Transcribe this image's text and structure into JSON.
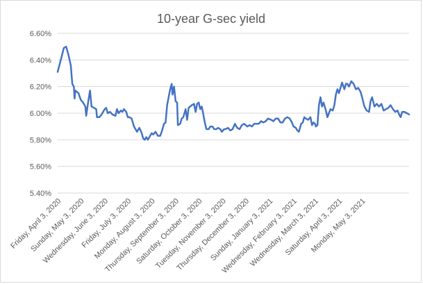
{
  "chart_data": {
    "type": "line",
    "title": "10-year G-sec yield",
    "xlabel": "",
    "ylabel": "",
    "ylim": [
      5.4,
      6.6
    ],
    "y_ticks": [
      "5.40%",
      "5.60%",
      "5.80%",
      "6.00%",
      "6.20%",
      "6.40%",
      "6.60%"
    ],
    "y_tick_values": [
      5.4,
      5.6,
      5.8,
      6.0,
      6.2,
      6.4,
      6.6
    ],
    "x_tick_labels": [
      "Friday, April 3, 2020",
      "Sunday, May 3, 2020",
      "Wednesday, June 3, 2020",
      "Friday, July 3, 2020",
      "Monday, August 3, 2020",
      "Thursday, September 3, 2020",
      "Saturday, October 3, 2020",
      "Tuesday, November 3, 2020",
      "Thursday, December 3, 2020",
      "Sunday, January 3, 2021",
      "Wednesday, February 3, 2021",
      "Wednesday, March 3, 2021",
      "Saturday, April 3, 2021",
      "Monday, May 3, 2021"
    ],
    "x_tick_dates": [
      "2020-04-03",
      "2020-05-03",
      "2020-06-03",
      "2020-07-03",
      "2020-08-03",
      "2020-09-03",
      "2020-10-03",
      "2020-11-03",
      "2020-12-03",
      "2021-01-03",
      "2021-02-03",
      "2021-03-03",
      "2021-04-03",
      "2021-05-03"
    ],
    "grid": true,
    "legend": "none",
    "series": [
      {
        "color": "#4472c4",
        "points": [
          [
            "2020-04-01",
            6.31
          ],
          [
            "2020-04-06",
            6.42
          ],
          [
            "2020-04-09",
            6.49
          ],
          [
            "2020-04-12",
            6.5
          ],
          [
            "2020-04-15",
            6.44
          ],
          [
            "2020-04-18",
            6.36
          ],
          [
            "2020-04-20",
            6.22
          ],
          [
            "2020-04-22",
            6.2
          ],
          [
            "2020-04-23",
            6.11
          ],
          [
            "2020-04-24",
            6.17
          ],
          [
            "2020-04-28",
            6.15
          ],
          [
            "2020-05-01",
            6.1
          ],
          [
            "2020-05-04",
            6.08
          ],
          [
            "2020-05-07",
            6.05
          ],
          [
            "2020-05-08",
            5.98
          ],
          [
            "2020-05-11",
            6.1
          ],
          [
            "2020-05-13",
            6.17
          ],
          [
            "2020-05-15",
            6.05
          ],
          [
            "2020-05-18",
            6.04
          ],
          [
            "2020-05-21",
            6.03
          ],
          [
            "2020-05-22",
            5.97
          ],
          [
            "2020-05-25",
            5.97
          ],
          [
            "2020-05-28",
            5.99
          ],
          [
            "2020-06-01",
            6.03
          ],
          [
            "2020-06-03",
            6.04
          ],
          [
            "2020-06-05",
            6.0
          ],
          [
            "2020-06-08",
            6.01
          ],
          [
            "2020-06-11",
            5.99
          ],
          [
            "2020-06-15",
            5.98
          ],
          [
            "2020-06-17",
            6.03
          ],
          [
            "2020-06-19",
            6.0
          ],
          [
            "2020-06-22",
            6.02
          ],
          [
            "2020-06-24",
            6.01
          ],
          [
            "2020-06-26",
            6.03
          ],
          [
            "2020-06-29",
            6.01
          ],
          [
            "2020-07-01",
            5.97
          ],
          [
            "2020-07-03",
            5.97
          ],
          [
            "2020-07-06",
            5.96
          ],
          [
            "2020-07-09",
            5.9
          ],
          [
            "2020-07-13",
            5.86
          ],
          [
            "2020-07-16",
            5.89
          ],
          [
            "2020-07-19",
            5.85
          ],
          [
            "2020-07-21",
            5.81
          ],
          [
            "2020-07-23",
            5.8
          ],
          [
            "2020-07-25",
            5.82
          ],
          [
            "2020-07-27",
            5.8
          ],
          [
            "2020-07-29",
            5.82
          ],
          [
            "2020-08-01",
            5.85
          ],
          [
            "2020-08-03",
            5.84
          ],
          [
            "2020-08-06",
            5.86
          ],
          [
            "2020-08-09",
            5.83
          ],
          [
            "2020-08-12",
            5.83
          ],
          [
            "2020-08-14",
            5.86
          ],
          [
            "2020-08-17",
            5.92
          ],
          [
            "2020-08-19",
            5.93
          ],
          [
            "2020-08-21",
            6.06
          ],
          [
            "2020-08-23",
            6.12
          ],
          [
            "2020-08-25",
            6.18
          ],
          [
            "2020-08-27",
            6.22
          ],
          [
            "2020-08-28",
            6.14
          ],
          [
            "2020-08-30",
            6.2
          ],
          [
            "2020-09-01",
            6.09
          ],
          [
            "2020-09-03",
            6.08
          ],
          [
            "2020-09-04",
            5.91
          ],
          [
            "2020-09-07",
            5.92
          ],
          [
            "2020-09-09",
            5.96
          ],
          [
            "2020-09-11",
            5.97
          ],
          [
            "2020-09-14",
            6.03
          ],
          [
            "2020-09-16",
            5.95
          ],
          [
            "2020-09-18",
            6.04
          ],
          [
            "2020-09-22",
            6.06
          ],
          [
            "2020-09-25",
            6.07
          ],
          [
            "2020-09-27",
            6.01
          ],
          [
            "2020-09-29",
            6.07
          ],
          [
            "2020-10-01",
            6.08
          ],
          [
            "2020-10-03",
            6.03
          ],
          [
            "2020-10-05",
            6.05
          ],
          [
            "2020-10-07",
            5.99
          ],
          [
            "2020-10-09",
            5.93
          ],
          [
            "2020-10-11",
            5.88
          ],
          [
            "2020-10-14",
            5.88
          ],
          [
            "2020-10-16",
            5.9
          ],
          [
            "2020-10-19",
            5.9
          ],
          [
            "2020-10-21",
            5.88
          ],
          [
            "2020-10-24",
            5.88
          ],
          [
            "2020-10-26",
            5.89
          ],
          [
            "2020-10-29",
            5.88
          ],
          [
            "2020-10-31",
            5.86
          ],
          [
            "2020-11-03",
            5.88
          ],
          [
            "2020-11-05",
            5.88
          ],
          [
            "2020-11-08",
            5.89
          ],
          [
            "2020-11-11",
            5.87
          ],
          [
            "2020-11-14",
            5.88
          ],
          [
            "2020-11-17",
            5.92
          ],
          [
            "2020-11-20",
            5.89
          ],
          [
            "2020-11-23",
            5.88
          ],
          [
            "2020-11-26",
            5.91
          ],
          [
            "2020-11-29",
            5.92
          ],
          [
            "2020-12-03",
            5.9
          ],
          [
            "2020-12-06",
            5.91
          ],
          [
            "2020-12-09",
            5.9
          ],
          [
            "2020-12-12",
            5.92
          ],
          [
            "2020-12-15",
            5.92
          ],
          [
            "2020-12-18",
            5.92
          ],
          [
            "2020-12-21",
            5.94
          ],
          [
            "2020-12-24",
            5.93
          ],
          [
            "2020-12-27",
            5.94
          ],
          [
            "2020-12-30",
            5.96
          ],
          [
            "2021-01-03",
            5.95
          ],
          [
            "2021-01-06",
            5.94
          ],
          [
            "2021-01-09",
            5.96
          ],
          [
            "2021-01-12",
            5.96
          ],
          [
            "2021-01-15",
            5.93
          ],
          [
            "2021-01-18",
            5.93
          ],
          [
            "2021-01-21",
            5.96
          ],
          [
            "2021-01-24",
            5.97
          ],
          [
            "2021-01-27",
            5.96
          ],
          [
            "2021-01-30",
            5.93
          ],
          [
            "2021-02-01",
            5.9
          ],
          [
            "2021-02-04",
            5.89
          ],
          [
            "2021-02-06",
            5.87
          ],
          [
            "2021-02-08",
            5.86
          ],
          [
            "2021-02-11",
            5.92
          ],
          [
            "2021-02-13",
            5.93
          ],
          [
            "2021-02-15",
            5.97
          ],
          [
            "2021-02-17",
            5.96
          ],
          [
            "2021-02-20",
            5.95
          ],
          [
            "2021-02-23",
            5.97
          ],
          [
            "2021-02-25",
            5.91
          ],
          [
            "2021-02-27",
            5.93
          ],
          [
            "2021-03-01",
            5.92
          ],
          [
            "2021-03-02",
            5.9
          ],
          [
            "2021-03-04",
            5.91
          ],
          [
            "2021-03-06",
            6.06
          ],
          [
            "2021-03-08",
            6.12
          ],
          [
            "2021-03-10",
            6.05
          ],
          [
            "2021-03-12",
            6.08
          ],
          [
            "2021-03-15",
            6.02
          ],
          [
            "2021-03-17",
            5.97
          ],
          [
            "2021-03-19",
            6.0
          ],
          [
            "2021-03-21",
            6.03
          ],
          [
            "2021-03-24",
            6.02
          ],
          [
            "2021-03-26",
            6.06
          ],
          [
            "2021-03-28",
            6.14
          ],
          [
            "2021-03-30",
            6.18
          ],
          [
            "2021-04-01",
            6.15
          ],
          [
            "2021-04-03",
            6.19
          ],
          [
            "2021-04-05",
            6.23
          ],
          [
            "2021-04-08",
            6.18
          ],
          [
            "2021-04-10",
            6.22
          ],
          [
            "2021-04-12",
            6.22
          ],
          [
            "2021-04-14",
            6.2
          ],
          [
            "2021-04-17",
            6.24
          ],
          [
            "2021-04-20",
            6.22
          ],
          [
            "2021-04-23",
            6.18
          ],
          [
            "2021-04-26",
            6.19
          ],
          [
            "2021-04-29",
            6.16
          ],
          [
            "2021-05-01",
            6.12
          ],
          [
            "2021-05-04",
            6.05
          ],
          [
            "2021-05-07",
            6.02
          ],
          [
            "2021-05-10",
            6.01
          ],
          [
            "2021-05-12",
            6.09
          ],
          [
            "2021-05-14",
            6.12
          ],
          [
            "2021-05-17",
            6.05
          ],
          [
            "2021-05-20",
            6.07
          ],
          [
            "2021-05-23",
            6.05
          ],
          [
            "2021-05-26",
            6.07
          ],
          [
            "2021-05-29",
            6.02
          ],
          [
            "2021-06-01",
            6.03
          ],
          [
            "2021-06-04",
            6.04
          ],
          [
            "2021-06-07",
            6.06
          ],
          [
            "2021-06-10",
            6.03
          ],
          [
            "2021-06-13",
            6.01
          ],
          [
            "2021-06-16",
            6.02
          ],
          [
            "2021-06-18",
            5.99
          ],
          [
            "2021-06-20",
            5.97
          ],
          [
            "2021-06-22",
            6.01
          ],
          [
            "2021-06-25",
            6.01
          ],
          [
            "2021-06-28",
            6.0
          ],
          [
            "2021-07-01",
            5.99
          ]
        ]
      }
    ]
  }
}
